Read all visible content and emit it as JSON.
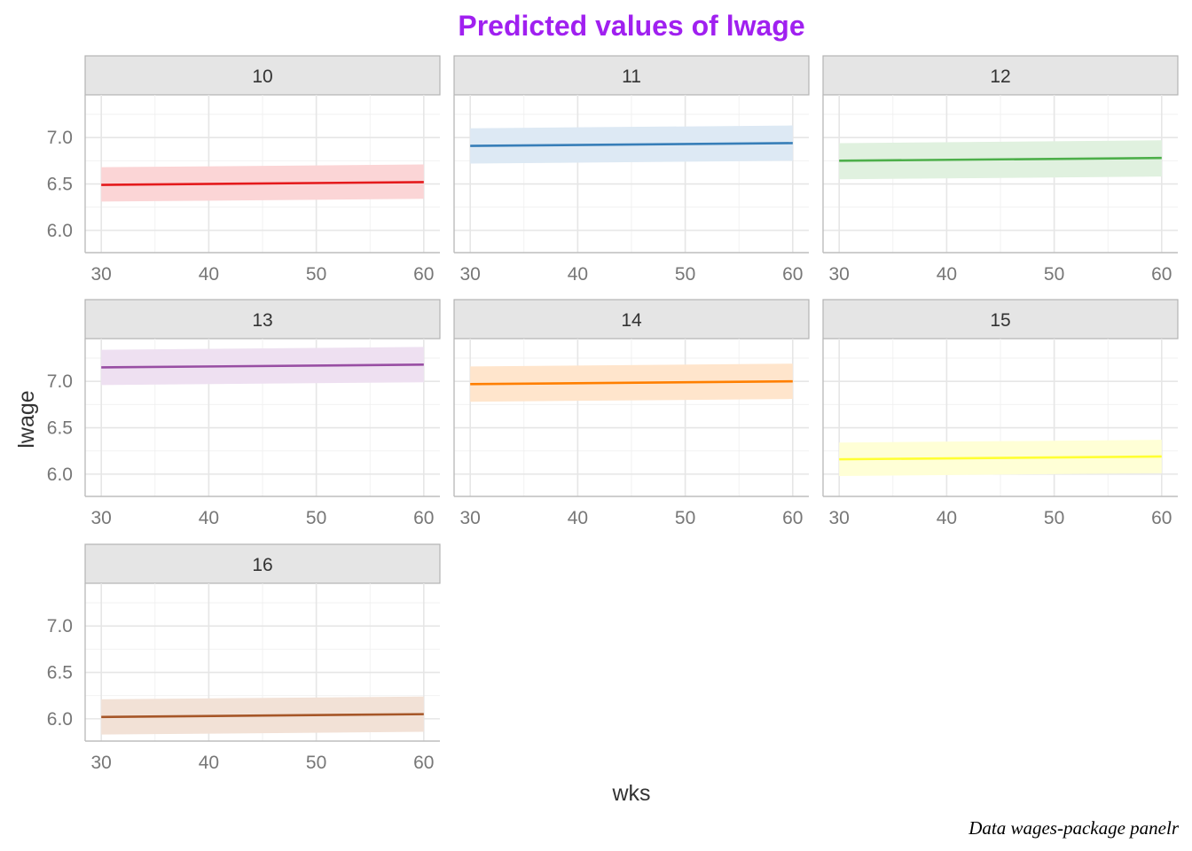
{
  "chart_data": {
    "type": "line",
    "title": "Predicted values of lwage",
    "xlabel": "wks",
    "ylabel": "lwage",
    "caption": "Data wages-package panelr",
    "xlim": [
      28.5,
      61.5
    ],
    "ylim": [
      5.76,
      7.46
    ],
    "x_ticks": [
      30,
      40,
      50,
      60
    ],
    "x_tick_labels": [
      "30",
      "40",
      "50",
      "60"
    ],
    "y_ticks": [
      6.0,
      6.5,
      7.0
    ],
    "y_tick_labels": [
      "6.0",
      "6.5",
      "7.0"
    ],
    "grid": true,
    "facets": [
      {
        "label": "10",
        "color": "#E41A1C",
        "fill": "#FBD5D6",
        "x": [
          30,
          60
        ],
        "y": [
          6.49,
          6.52
        ],
        "ci_low": [
          6.31,
          6.34
        ],
        "ci_high": [
          6.68,
          6.71
        ]
      },
      {
        "label": "11",
        "color": "#377EB8",
        "fill": "#DDE9F4",
        "x": [
          30,
          60
        ],
        "y": [
          6.91,
          6.94
        ],
        "ci_low": [
          6.72,
          6.75
        ],
        "ci_high": [
          7.1,
          7.13
        ]
      },
      {
        "label": "12",
        "color": "#4DAF4A",
        "fill": "#E0F1DF",
        "x": [
          30,
          60
        ],
        "y": [
          6.75,
          6.78
        ],
        "ci_low": [
          6.55,
          6.58
        ],
        "ci_high": [
          6.94,
          6.97
        ]
      },
      {
        "label": "13",
        "color": "#984EA3",
        "fill": "#EEE0F1",
        "x": [
          30,
          60
        ],
        "y": [
          7.15,
          7.18
        ],
        "ci_low": [
          6.96,
          6.99
        ],
        "ci_high": [
          7.34,
          7.37
        ]
      },
      {
        "label": "14",
        "color": "#FF7F00",
        "fill": "#FFE5CC",
        "x": [
          30,
          60
        ],
        "y": [
          6.97,
          7.0
        ],
        "ci_low": [
          6.78,
          6.81
        ],
        "ci_high": [
          7.16,
          7.19
        ]
      },
      {
        "label": "15",
        "color": "#FFFF33",
        "fill": "#FFFFD6",
        "x": [
          30,
          60
        ],
        "y": [
          6.16,
          6.19
        ],
        "ci_low": [
          5.98,
          6.01
        ],
        "ci_high": [
          6.34,
          6.37
        ]
      },
      {
        "label": "16",
        "color": "#A65628",
        "fill": "#F2E1D6",
        "x": [
          30,
          60
        ],
        "y": [
          6.02,
          6.05
        ],
        "ci_low": [
          5.83,
          5.86
        ],
        "ci_high": [
          6.21,
          6.24
        ]
      }
    ]
  }
}
